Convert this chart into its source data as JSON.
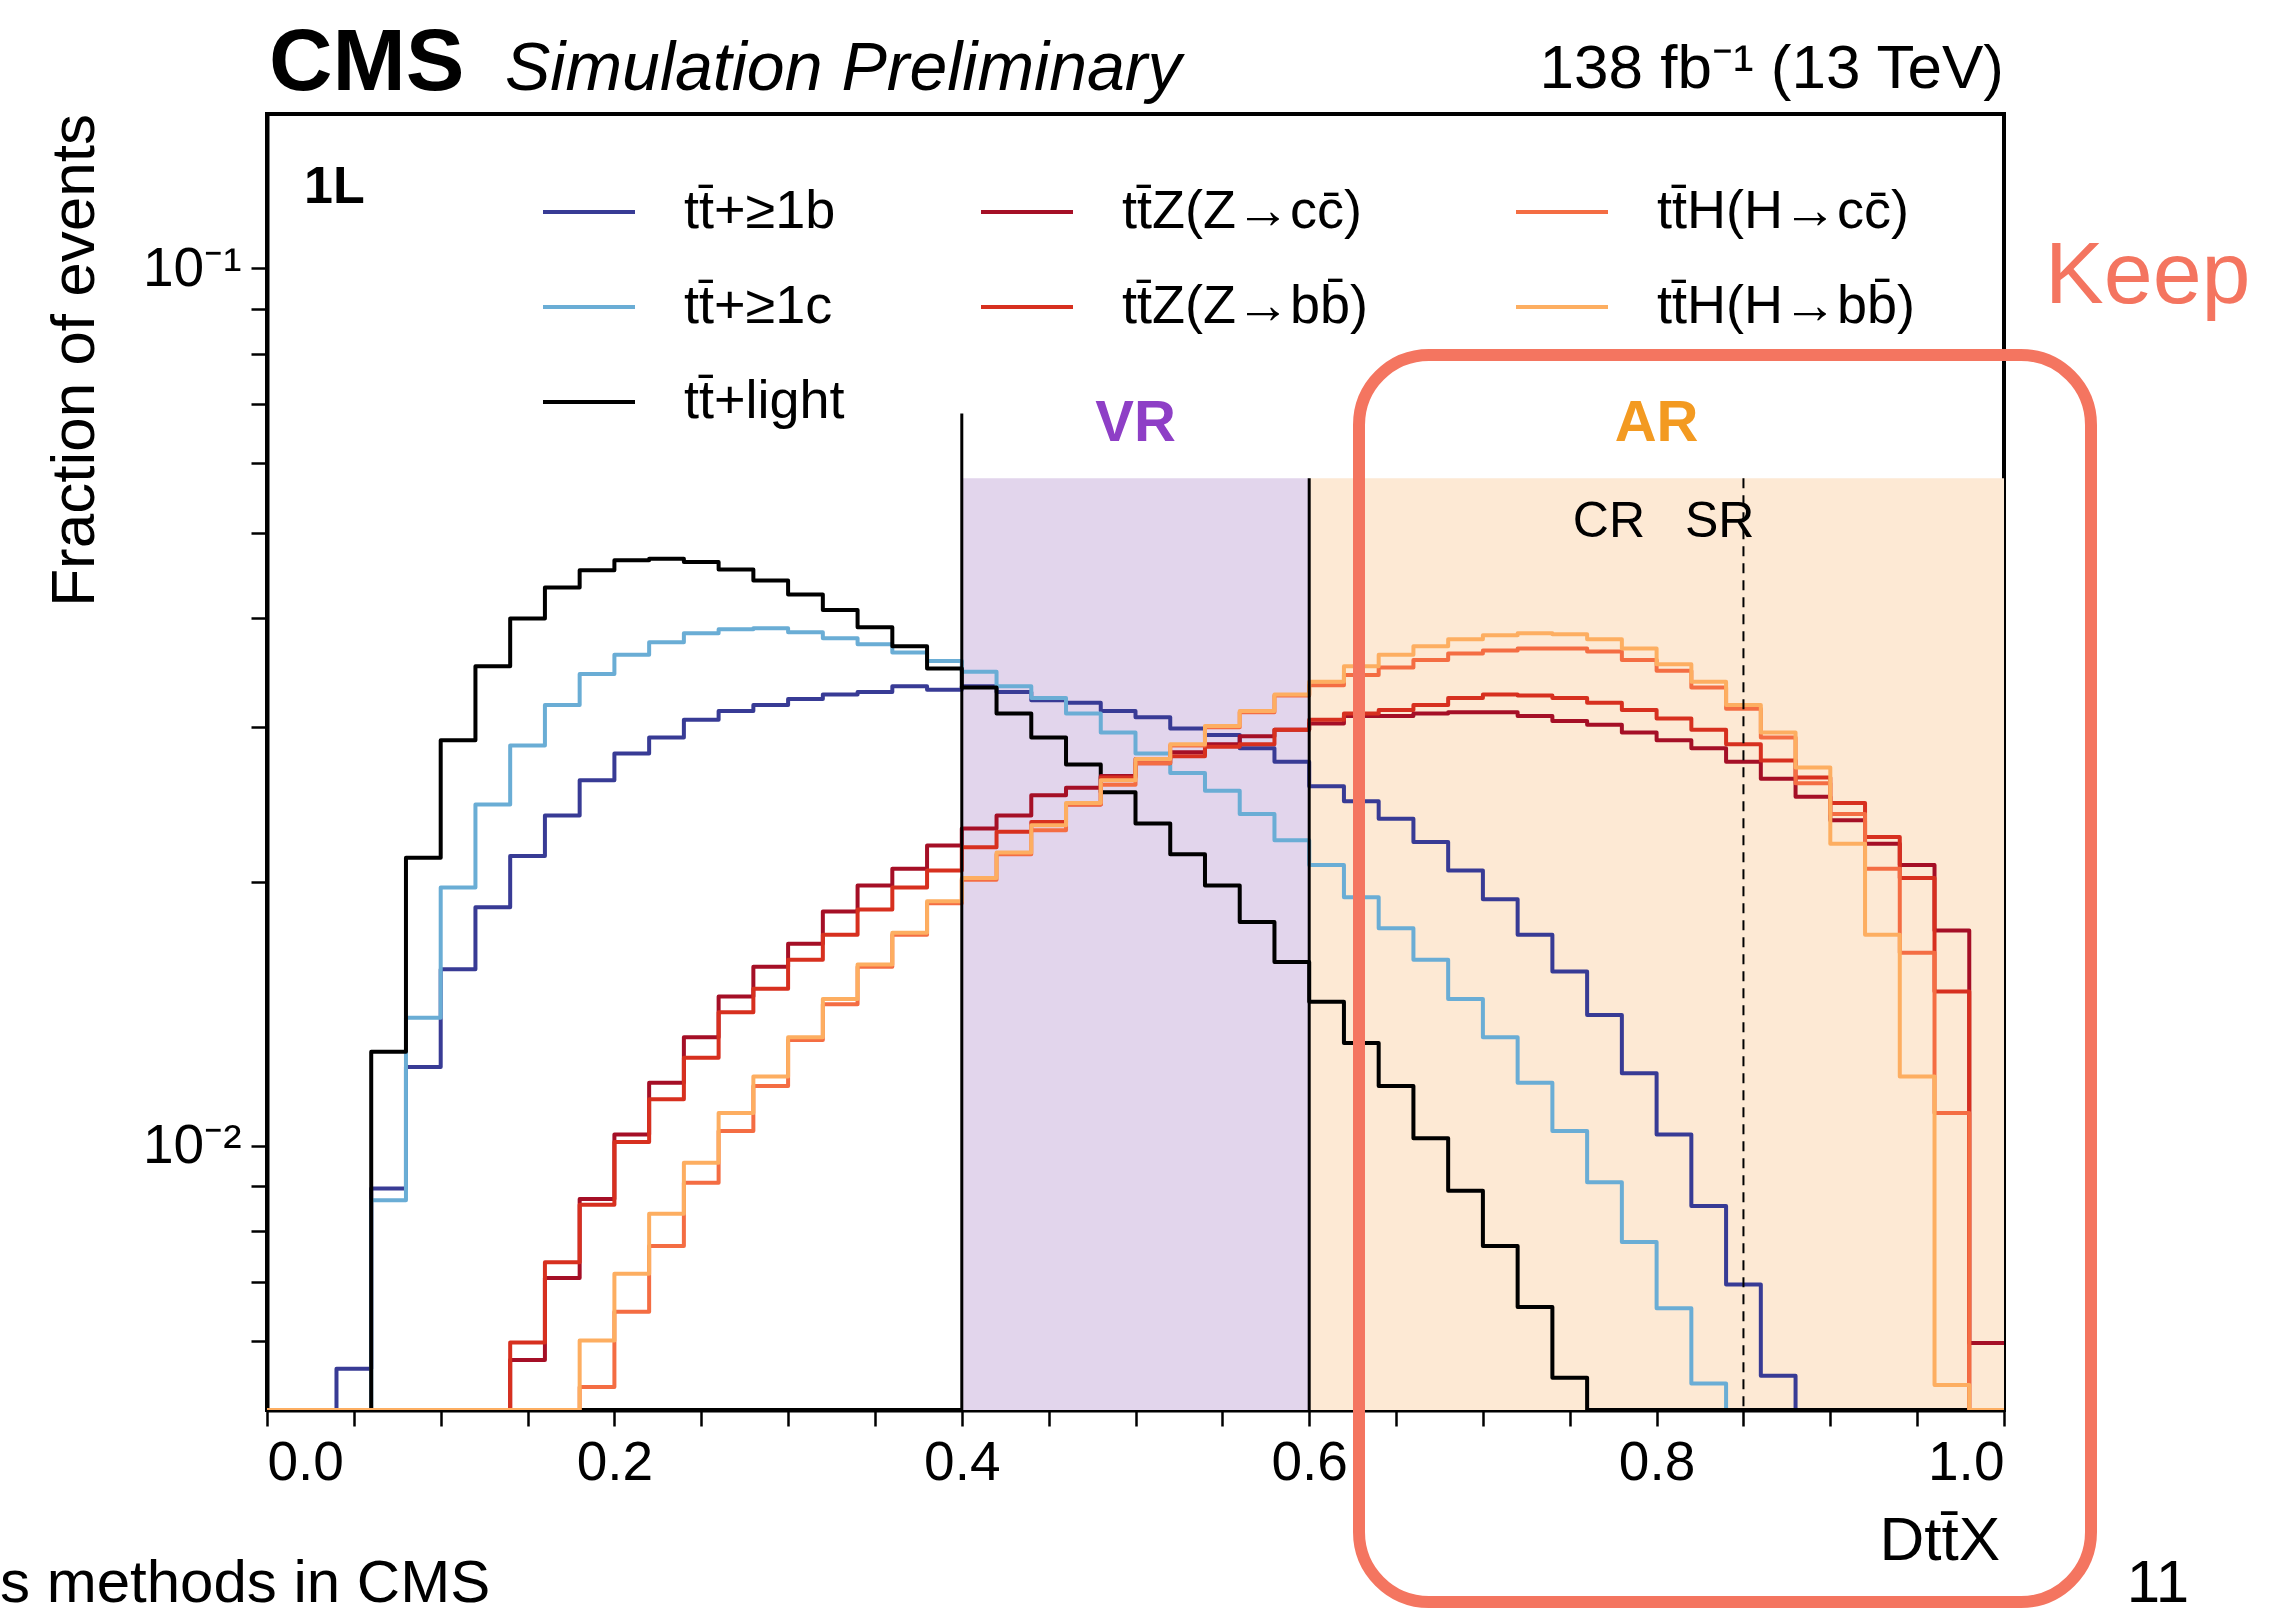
{
  "chart_data": {
    "type": "histogram",
    "title": "CMS",
    "subtitle": "Simulation Preliminary",
    "xlabel": "Dtt̄X",
    "ylabel": "Fraction of events",
    "bins": [
      0.0,
      0.02,
      0.04,
      0.06,
      0.08,
      0.1,
      0.12,
      0.14,
      0.16,
      0.18,
      0.2,
      0.22,
      0.24,
      0.26,
      0.28,
      0.3,
      0.32,
      0.34,
      0.36,
      0.38,
      0.4,
      0.42,
      0.44,
      0.46,
      0.48,
      0.5,
      0.52,
      0.54,
      0.56,
      0.58,
      0.6,
      0.62,
      0.64,
      0.66,
      0.68,
      0.7,
      0.72,
      0.74,
      0.76,
      0.78,
      0.8,
      0.82,
      0.84,
      0.86,
      0.88,
      0.9,
      0.92,
      0.94,
      0.96,
      0.98,
      1.0
    ],
    "series": [
      {
        "name": "tt̄+≥1b",
        "color": "#383b95",
        "values": [
          null,
          null,
          0.00557,
          0.00894,
          0.0123,
          0.0159,
          0.0187,
          0.0214,
          0.0238,
          0.0261,
          0.028,
          0.0292,
          0.0306,
          0.0313,
          0.0318,
          0.0323,
          0.0327,
          0.0329,
          0.0334,
          0.0331,
          0.0334,
          0.0329,
          0.0322,
          0.032,
          0.0313,
          0.0308,
          0.0299,
          0.0294,
          0.0284,
          0.0274,
          0.0257,
          0.0247,
          0.0236,
          0.0222,
          0.0206,
          0.0191,
          0.0174,
          0.0158,
          0.0141,
          0.0121,
          0.0103,
          0.00854,
          0.00695,
          0.00547,
          null,
          null,
          null,
          null,
          null,
          null
        ]
      },
      {
        "name": "tt̄+≥1c",
        "color": "#6aadd5",
        "values": [
          null,
          null,
          null,
          0.00867,
          0.014,
          0.0197,
          0.0245,
          0.0286,
          0.0318,
          0.0345,
          0.0363,
          0.0375,
          0.0384,
          0.0388,
          0.0389,
          0.0385,
          0.0379,
          0.0373,
          0.0365,
          0.0357,
          0.0347,
          0.0334,
          0.0324,
          0.0311,
          0.0296,
          0.028,
          0.0266,
          0.0254,
          0.0239,
          0.0223,
          0.0209,
          0.0192,
          0.0177,
          0.0163,
          0.0147,
          0.0133,
          0.0118,
          0.0104,
          0.00909,
          0.00777,
          0.00653,
          0.00536,
          null,
          null,
          null,
          null,
          null,
          null,
          null,
          null
        ]
      },
      {
        "name": "tt̄+light",
        "color": "#000000",
        "values": [
          null,
          null,
          null,
          0.0128,
          0.0213,
          0.029,
          0.0352,
          0.0399,
          0.0433,
          0.0453,
          0.0465,
          0.0467,
          0.0463,
          0.0454,
          0.0441,
          0.0425,
          0.0408,
          0.039,
          0.0371,
          0.035,
          0.0333,
          0.0311,
          0.0292,
          0.0272,
          0.0253,
          0.0233,
          0.0215,
          0.0198,
          0.018,
          0.0162,
          0.0146,
          0.0131,
          0.0117,
          0.0102,
          0.00889,
          0.00769,
          0.00655,
          0.00544,
          null,
          null,
          null,
          null,
          null,
          null,
          null,
          null,
          null,
          null,
          null,
          null
        ]
      },
      {
        "name": "tt̄Z(Z→cc̄)",
        "color": "#a50f26",
        "values": [
          null,
          null,
          null,
          null,
          null,
          null,
          null,
          0.0057,
          0.00707,
          0.0087,
          0.0103,
          0.0118,
          0.0133,
          0.0148,
          0.016,
          0.017,
          0.0185,
          0.0198,
          0.0207,
          0.022,
          0.023,
          0.0238,
          0.0251,
          0.0256,
          0.0264,
          0.0276,
          0.0281,
          0.0287,
          0.0293,
          0.0298,
          0.0303,
          0.0309,
          0.0309,
          0.0311,
          0.0312,
          0.0312,
          0.0309,
          0.0305,
          0.0302,
          0.0296,
          0.029,
          0.0284,
          0.0274,
          0.0262,
          0.025,
          0.0235,
          0.0221,
          0.0209,
          0.0176,
          0.00596
        ]
      },
      {
        "name": "tt̄Z(Z→bb̄)",
        "color": "#d7301f",
        "values": [
          null,
          null,
          null,
          null,
          null,
          null,
          null,
          0.00597,
          0.00737,
          0.00857,
          0.0101,
          0.0113,
          0.0126,
          0.0142,
          0.0151,
          0.0163,
          0.0174,
          0.0186,
          0.0197,
          0.0206,
          0.0219,
          0.0228,
          0.0234,
          0.0245,
          0.0263,
          0.0273,
          0.0278,
          0.0285,
          0.0287,
          0.0298,
          0.0306,
          0.0311,
          0.0314,
          0.0318,
          0.0324,
          0.0327,
          0.0326,
          0.0324,
          0.032,
          0.0314,
          0.0307,
          0.0298,
          0.0287,
          0.0275,
          0.0263,
          0.0246,
          0.0225,
          0.0202,
          0.015,
          null
        ]
      },
      {
        "name": "tt̄H(H→cc̄)",
        "color": "#f46d43",
        "values": [
          null,
          null,
          null,
          null,
          null,
          null,
          null,
          null,
          null,
          0.00531,
          0.00647,
          0.00769,
          0.00908,
          0.0104,
          0.0117,
          0.0132,
          0.0145,
          0.016,
          0.0174,
          0.0189,
          0.0201,
          0.0215,
          0.0229,
          0.0245,
          0.0258,
          0.0273,
          0.0286,
          0.03,
          0.0312,
          0.0326,
          0.0335,
          0.0344,
          0.0351,
          0.0358,
          0.0364,
          0.0367,
          0.0369,
          0.0369,
          0.0366,
          0.0358,
          0.0348,
          0.0333,
          0.0315,
          0.0292,
          0.0259,
          0.0239,
          0.0207,
          0.0166,
          0.0109,
          null
        ]
      },
      {
        "name": "tt̄H(H→bb̄)",
        "color": "#fdae61",
        "values": [
          null,
          null,
          null,
          null,
          null,
          null,
          null,
          null,
          null,
          0.006,
          0.00715,
          0.00837,
          0.00957,
          0.0109,
          0.012,
          0.0133,
          0.0147,
          0.0161,
          0.0175,
          0.019,
          0.0202,
          0.0216,
          0.0232,
          0.0246,
          0.0261,
          0.0276,
          0.0287,
          0.0301,
          0.0313,
          0.0327,
          0.0338,
          0.0352,
          0.0363,
          0.0371,
          0.0378,
          0.0382,
          0.0384,
          0.0383,
          0.0378,
          0.0369,
          0.0354,
          0.0338,
          0.0318,
          0.0296,
          0.027,
          0.0221,
          0.0174,
          0.012,
          0.00534,
          null
        ]
      }
    ],
    "log": "y",
    "xlim": [
      0.0,
      1.0
    ],
    "ylim": [
      0.005,
      0.15
    ],
    "xticks": [
      {
        "value": 0.0,
        "label": "0.0"
      },
      {
        "value": 0.05,
        "label": null
      },
      {
        "value": 0.1,
        "label": null
      },
      {
        "value": 0.15,
        "label": null
      },
      0.2,
      {
        "value": 0.25,
        "label": null
      },
      {
        "value": 0.3,
        "label": null
      },
      {
        "value": 0.35,
        "label": null
      },
      0.4,
      {
        "value": 0.45,
        "label": null
      },
      {
        "value": 0.5,
        "label": null
      },
      {
        "value": 0.55,
        "label": null
      },
      0.6,
      {
        "value": 0.65,
        "label": null
      },
      {
        "value": 0.7,
        "label": null
      },
      {
        "value": 0.75,
        "label": null
      },
      0.8,
      {
        "value": 0.85,
        "label": null
      },
      {
        "value": 0.9,
        "label": null
      },
      {
        "value": 0.95,
        "label": null
      },
      {
        "value": 1.0,
        "label": "1.0"
      }
    ],
    "yticks": [
      {
        "value": 0.006,
        "label": null
      },
      {
        "value": 0.007,
        "label": null
      },
      {
        "value": 0.008,
        "label": null
      },
      {
        "value": 0.009,
        "label": null
      },
      {
        "value": 0.01,
        "label": "10⁻²"
      },
      {
        "value": 0.02,
        "label": null
      },
      {
        "value": 0.03,
        "label": null
      },
      {
        "value": 0.04,
        "label": null
      },
      {
        "value": 0.05,
        "label": null
      },
      {
        "value": 0.06,
        "label": null
      },
      {
        "value": 0.07,
        "label": null
      },
      {
        "value": 0.08,
        "label": null
      },
      {
        "value": 0.09,
        "label": null
      },
      {
        "value": 0.1,
        "label": "10⁻¹"
      }
    ],
    "bands": [
      {
        "axis": "x",
        "from": 0.4,
        "to": 0.6,
        "label": "VR",
        "color": "#e2d5ec"
      },
      {
        "axis": "x",
        "from": 0.6,
        "to": 1.0,
        "label": "AR",
        "color": "#fde9d4"
      }
    ],
    "ref_lines": [
      {
        "axis": "x",
        "value": 0.4,
        "color": "#000000",
        "line_style": "solid"
      },
      {
        "axis": "x",
        "value": 0.6,
        "color": "#000000",
        "line_style": "solid"
      },
      {
        "axis": "x",
        "value": 0.85,
        "color": "#000000",
        "line_style": "dashed"
      }
    ],
    "annotations": [
      "1L",
      "138 fb⁻¹ (13 TeV)",
      "CR",
      "SR",
      "Keep",
      "s methods in CMS",
      "11"
    ],
    "grid": false,
    "legend": "top"
  }
}
